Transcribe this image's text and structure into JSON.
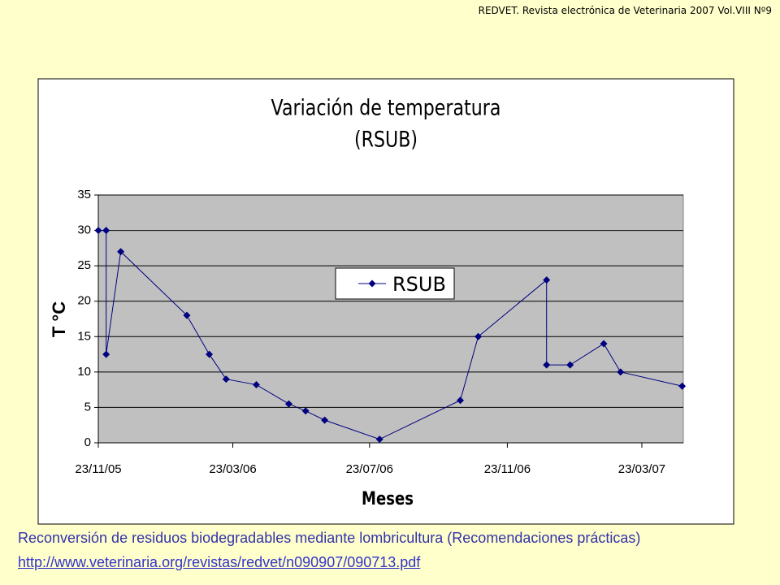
{
  "header": "REDVET. Revista electrónica de Veterinaria 2007 Vol.VIII Nº9",
  "chart_data": {
    "type": "line",
    "title": "Variación de temperatura",
    "subtitle": "(RSUB)",
    "x_label": "Meses",
    "y_label": "T °C",
    "x": [
      "2005-11-23",
      "2005-11-30",
      "2005-11-30",
      "2005-12-13",
      "2006-02-10",
      "2006-03-02",
      "2006-03-17",
      "2006-04-13",
      "2006-05-12",
      "2006-05-27",
      "2006-06-13",
      "2006-08-01",
      "2006-10-12",
      "2006-10-28",
      "2006-12-28",
      "2006-12-28",
      "2007-01-18",
      "2007-02-17",
      "2007-03-04",
      "2007-04-28"
    ],
    "series": [
      {
        "name": "RSUB",
        "color": "#000080",
        "values": [
          30,
          30,
          12.5,
          27,
          18,
          12.5,
          9,
          8.2,
          5.5,
          4.5,
          3.2,
          0.5,
          6,
          15,
          23,
          11,
          11,
          14,
          10,
          8
        ]
      }
    ],
    "xlim": [
      "2005-11-23",
      "2007-04-29"
    ],
    "xticks": [
      {
        "value": "2005-11-23",
        "label": "23/11/05"
      },
      {
        "value": "2006-03-23",
        "label": "23/03/06"
      },
      {
        "value": "2006-07-23",
        "label": "23/07/06"
      },
      {
        "value": "2006-11-23",
        "label": "23/11/06"
      },
      {
        "value": "2007-03-23",
        "label": "23/03/07"
      }
    ],
    "ylim": [
      0,
      35
    ],
    "yticks": [
      0,
      5,
      10,
      15,
      20,
      25,
      30,
      35
    ],
    "grid": true,
    "legend": "center"
  },
  "caption": "Reconversión de residuos biodegradables mediante lombricultura (Recomendaciones prácticas)",
  "link": "http://www.veterinaria.org/revistas/redvet/n090907/090713.pdf"
}
